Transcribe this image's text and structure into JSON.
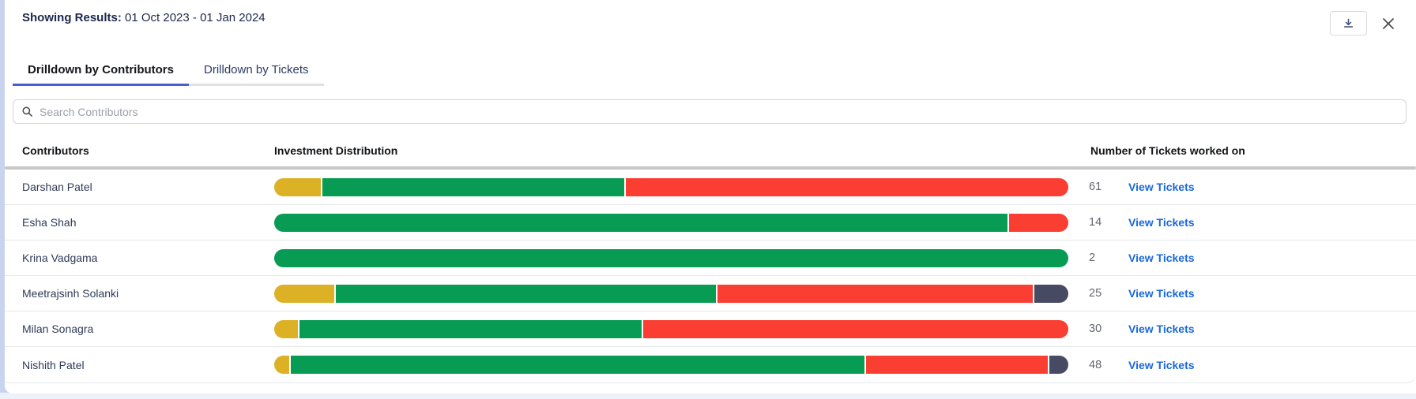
{
  "header": {
    "results_label": "Showing Results:",
    "date_range": " 01 Oct 2023 - 01 Jan 2024"
  },
  "toolbar": {
    "download_icon": "download-tray-arrow",
    "close_icon": "close-x"
  },
  "tabs": [
    {
      "label": "Drilldown by Contributors",
      "active": true
    },
    {
      "label": "Drilldown by Tickets",
      "active": false
    }
  ],
  "search": {
    "icon": "magnifier",
    "placeholder": "Search Contributors"
  },
  "table": {
    "columns": [
      "Contributors",
      "Investment Distribution",
      "Number of Tickets worked on"
    ],
    "link_label": "View Tickets"
  },
  "colors": {
    "yellow": "#DCB126",
    "green": "#089B53",
    "red": "#FB3E32",
    "dark": "#474A63",
    "tab_accent": "#4A5BD3",
    "link_blue": "#1868DB"
  },
  "chart_data": {
    "type": "bar",
    "note": "horizontal stacked investment-distribution bars per contributor, percents of full bar width",
    "legend_colors": {
      "yellow": "#DCB126",
      "green": "#089B53",
      "red": "#FB3E32",
      "dark": "#474A63"
    },
    "series": "see contributors[].segments"
  },
  "contributors": [
    {
      "name": "Darshan Patel",
      "tickets": "61",
      "segments": [
        {
          "color": "yellow",
          "pct": 6.0
        },
        {
          "color": "green",
          "pct": 38.1
        },
        {
          "color": "red",
          "pct": 55.9
        }
      ]
    },
    {
      "name": "Esha Shah",
      "tickets": "14",
      "segments": [
        {
          "color": "green",
          "pct": 92.4
        },
        {
          "color": "red",
          "pct": 7.6
        }
      ]
    },
    {
      "name": "Krina Vadgama",
      "tickets": "2",
      "segments": [
        {
          "color": "green",
          "pct": 100
        }
      ]
    },
    {
      "name": "Meetrajsinh Solanki",
      "tickets": "25",
      "segments": [
        {
          "color": "yellow",
          "pct": 7.7
        },
        {
          "color": "green",
          "pct": 48.0
        },
        {
          "color": "red",
          "pct": 39.9
        },
        {
          "color": "dark",
          "pct": 4.4
        }
      ]
    },
    {
      "name": "Milan Sonagra",
      "tickets": "30",
      "segments": [
        {
          "color": "yellow",
          "pct": 3.1
        },
        {
          "color": "green",
          "pct": 43.2
        },
        {
          "color": "red",
          "pct": 53.7
        }
      ]
    },
    {
      "name": "Nishith Patel",
      "tickets": "48",
      "segments": [
        {
          "color": "yellow",
          "pct": 2.0
        },
        {
          "color": "green",
          "pct": 72.4
        },
        {
          "color": "red",
          "pct": 23.1
        },
        {
          "color": "dark",
          "pct": 2.5
        }
      ]
    }
  ]
}
